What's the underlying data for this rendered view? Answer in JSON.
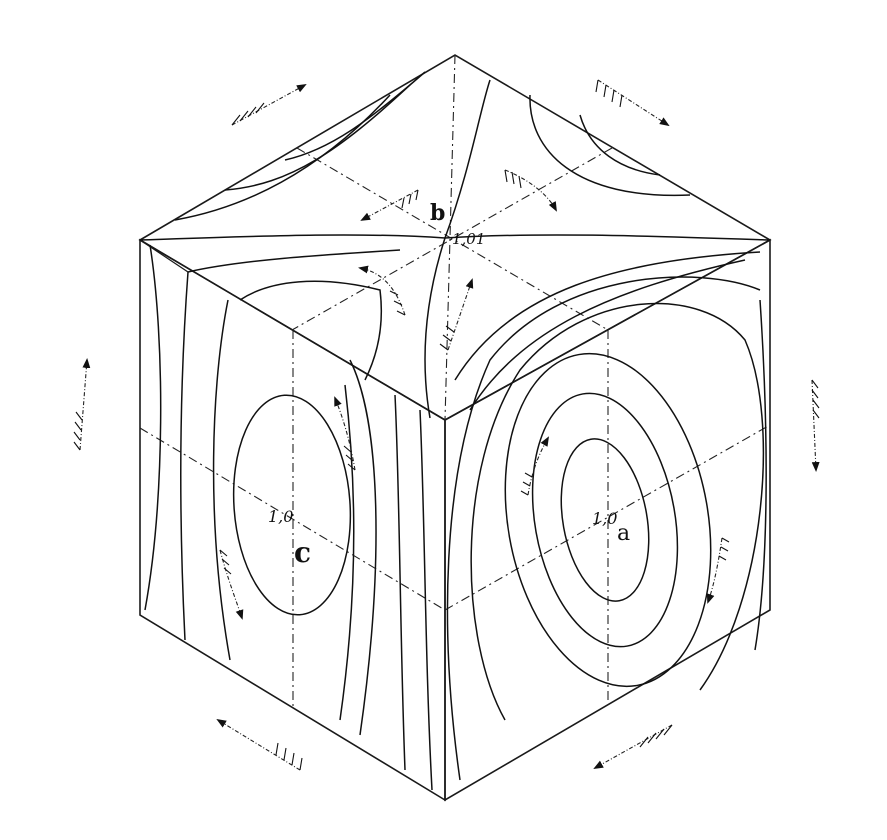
{
  "face_labels": {
    "top": {
      "letter": "b",
      "value": "1,01"
    },
    "right": {
      "letter": "a",
      "value": "1,0"
    },
    "left": {
      "letter": "c",
      "value": "1,0"
    }
  },
  "colors": {
    "ink": "#111111",
    "paper": "#ffffff"
  },
  "icons": {
    "flow_arrow": "feathered-arrow-icon"
  }
}
